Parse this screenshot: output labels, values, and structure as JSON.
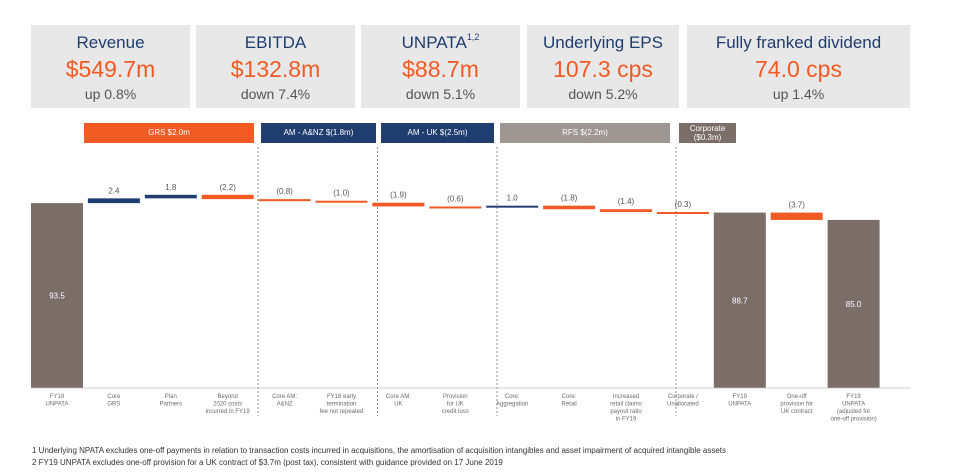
{
  "kpis": [
    {
      "title": "Revenue",
      "sup": "",
      "value": "$549.7m",
      "change": "up 0.8%"
    },
    {
      "title": "EBITDA",
      "sup": "",
      "value": "$132.8m",
      "change": "down 7.4%"
    },
    {
      "title": "UNPATA",
      "sup": "1,2",
      "value": "$88.7m",
      "change": "down 5.1%"
    },
    {
      "title": "Underlying EPS",
      "sup": "",
      "value": "107.3 cps",
      "change": "down 5.2%"
    },
    {
      "title": "Fully franked dividend",
      "sup": "",
      "value": "74.0 cps",
      "change": "up 1.4%"
    }
  ],
  "segments": [
    {
      "label": "GRS $2.0m",
      "color": "#f15a22"
    },
    {
      "label": "AM - A&NZ $(1.8m)",
      "color": "#1f3d6f"
    },
    {
      "label": "AM - UK $(2.5m)",
      "color": "#1f3d6f"
    },
    {
      "label": "RFS $(2.2m)",
      "color": "#9e9692"
    },
    {
      "label_lines": [
        "Corporate",
        "($0.3m)"
      ],
      "color": "#7b6e68"
    }
  ],
  "colors": {
    "total": "#7b6e68",
    "navy": "#1f3d6f",
    "orange": "#f15a22"
  },
  "chart_data": {
    "type": "bar",
    "ylim": [
      0,
      100
    ],
    "bars": [
      {
        "category": [
          "FY18",
          "UNPATA"
        ],
        "value": 93.5,
        "kind": "total",
        "label": "93.5"
      },
      {
        "category": [
          "Core",
          "GRS"
        ],
        "value": 2.4,
        "kind": "navy",
        "label": "2.4"
      },
      {
        "category": [
          "Plan",
          "Partners"
        ],
        "value": 1.8,
        "kind": "navy",
        "label": "1.8"
      },
      {
        "category": [
          "Beyond",
          "2020 costs",
          "incurred in FY19"
        ],
        "value": -2.2,
        "kind": "orange",
        "label": "(2.2)"
      },
      {
        "category": [
          "Core AM:",
          "A&NZ"
        ],
        "value": -0.8,
        "kind": "orange",
        "label": "(0.8)"
      },
      {
        "category": [
          "FY18 early",
          "termination",
          "fee not repeated"
        ],
        "value": -1.0,
        "kind": "orange",
        "label": "(1.0)"
      },
      {
        "category": [
          "Core AM:",
          "UK"
        ],
        "value": -1.9,
        "kind": "orange",
        "label": "(1.9)"
      },
      {
        "category": [
          "Provision",
          "for UK",
          "credit loss"
        ],
        "value": -0.6,
        "kind": "orange",
        "label": "(0.6)"
      },
      {
        "category": [
          "Core:",
          "Aggregation"
        ],
        "value": 1.0,
        "kind": "navy",
        "label": "1.0"
      },
      {
        "category": [
          "Core:",
          "Retail"
        ],
        "value": -1.8,
        "kind": "orange",
        "label": "(1.8)"
      },
      {
        "category": [
          "Increased",
          "retail claims",
          "payout ratio",
          "in FY19"
        ],
        "value": -1.4,
        "kind": "orange",
        "label": "(1.4)"
      },
      {
        "category": [
          "Corporate /",
          "Unallocated"
        ],
        "value": -0.3,
        "kind": "orange",
        "label": "(0.3)"
      },
      {
        "category": [
          "FY19",
          "UNPATA"
        ],
        "value": 88.7,
        "kind": "total",
        "label": "88.7"
      },
      {
        "category": [
          "One-off",
          "provision for",
          "UK contract"
        ],
        "value": -3.7,
        "kind": "orange",
        "label": "(3.7)"
      },
      {
        "category": [
          "FY19",
          "UNPATA",
          "(adjusted for",
          "one-off provision)"
        ],
        "value": 85.0,
        "kind": "total",
        "label": "85.0"
      }
    ]
  },
  "footnotes": [
    "1  Underlying NPATA excludes one-off payments in relation to transaction costs incurred in acquisitions, the amortisation of acquisition intangibles and asset impairment of acquired intangible assets",
    "2  FY19 UNPATA excludes one-off provision for a UK contract of $3.7m (post tax), consistent with guidance provided on 17 June 2019"
  ]
}
